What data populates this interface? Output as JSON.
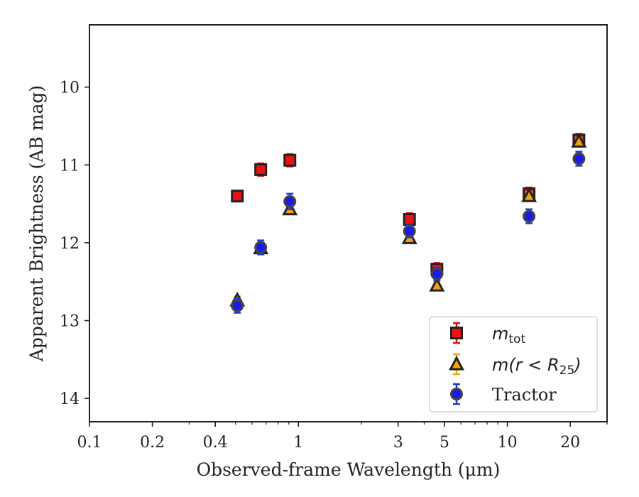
{
  "chart_data": {
    "type": "scatter",
    "xlabel": "Observed-frame Wavelength (μm)",
    "ylabel": "Apparent Brightness (AB mag)",
    "xscale": "log",
    "xlim": [
      0.1,
      30
    ],
    "ylim": [
      14.3,
      9.2
    ],
    "y_inverted": true,
    "x_ticks": [
      0.1,
      0.2,
      0.4,
      1,
      3,
      5,
      10,
      20
    ],
    "x_tick_labels": [
      "0.1",
      "0.2",
      "0.4",
      "1",
      "3",
      "5",
      "10",
      "20"
    ],
    "y_ticks": [
      10,
      11,
      12,
      13,
      14
    ],
    "y_tick_labels": [
      "10",
      "11",
      "12",
      "13",
      "14"
    ],
    "grid": false,
    "legend_position": "lower-right",
    "series": [
      {
        "name": "m_tot",
        "marker": "square",
        "face_color": "#ee1111",
        "edge_color": "#222222",
        "errbar_color": "#dd1111",
        "x": [
          0.51,
          0.66,
          0.91,
          3.4,
          4.6,
          12.7,
          22.0
        ],
        "y": [
          11.4,
          11.06,
          10.94,
          11.7,
          12.34,
          11.37,
          10.68
        ],
        "err": [
          0.07,
          0.08,
          0.08,
          0.08,
          0.08,
          0.08,
          0.08
        ]
      },
      {
        "name": "m(r < R25)",
        "marker": "triangle",
        "face_color": "#f5a300",
        "edge_color": "#222222",
        "errbar_color": "#f0a800",
        "x": [
          0.51,
          0.66,
          0.91,
          3.4,
          4.6,
          12.7,
          22.0
        ],
        "y": [
          12.74,
          12.07,
          11.57,
          11.94,
          12.55,
          11.4,
          10.7
        ],
        "err": [
          0.05,
          0.05,
          0.05,
          0.05,
          0.05,
          0.05,
          0.05
        ]
      },
      {
        "name": "Tractor",
        "marker": "circle",
        "face_color": "#1a1aee",
        "edge_color": "#444444",
        "errbar_color": "#2233dd",
        "x": [
          0.51,
          0.66,
          0.91,
          3.4,
          4.6,
          12.7,
          22.0
        ],
        "y": [
          12.81,
          12.06,
          11.47,
          11.85,
          12.4,
          11.66,
          10.92
        ],
        "err": [
          0.09,
          0.09,
          0.1,
          0.08,
          0.08,
          0.09,
          0.09
        ]
      }
    ]
  },
  "legend": {
    "entries": [
      {
        "math": "m",
        "sub": "tot",
        "text": ""
      },
      {
        "math": "m(r < R",
        "sub": "25",
        "after": ")",
        "text": ""
      },
      {
        "math": "",
        "sub": "",
        "text": "Tractor"
      }
    ]
  }
}
